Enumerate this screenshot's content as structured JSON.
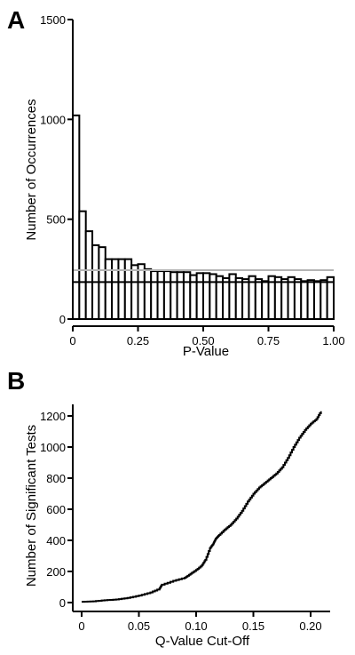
{
  "chart_data": [
    {
      "panel": "A",
      "type": "bar",
      "subtype": "histogram",
      "xlabel": "P-Value",
      "ylabel": "Number of Occurrences",
      "xlim": [
        0,
        1
      ],
      "ylim": [
        0,
        1500
      ],
      "xticks": [
        "0",
        "0.25",
        "0.50",
        "0.75",
        "1.00"
      ],
      "yticks": [
        "0",
        "500",
        "1000",
        "1500"
      ],
      "bin_width": 0.025,
      "bin_start": 0,
      "values": [
        1020,
        540,
        440,
        370,
        360,
        300,
        300,
        300,
        300,
        270,
        275,
        250,
        240,
        240,
        240,
        235,
        235,
        235,
        220,
        230,
        230,
        225,
        215,
        205,
        225,
        205,
        200,
        215,
        200,
        190,
        215,
        210,
        200,
        210,
        200,
        190,
        195,
        190,
        195,
        210
      ],
      "reference_lines": [
        {
          "name": "",
          "y": 245,
          "color": "#b4b4b4"
        },
        {
          "name": "",
          "y": 185,
          "color": "#000000"
        }
      ],
      "bar_fill": "#ffffff",
      "bar_stroke": "#000000",
      "grid": false,
      "legend": "none"
    },
    {
      "panel": "B",
      "type": "line",
      "subtype": "step",
      "xlabel": "Q-Value Cut-Off",
      "ylabel": "Number of Significant Tests",
      "xlim": [
        0,
        0.21
      ],
      "ylim": [
        0,
        1250
      ],
      "xticks": [
        "0",
        "0.05",
        "0.10",
        "0.15",
        "0.20"
      ],
      "yticks": [
        "0",
        "200",
        "400",
        "600",
        "800",
        "1000",
        "1200"
      ],
      "x": [
        0.0,
        0.01,
        0.02,
        0.03,
        0.04,
        0.05,
        0.06,
        0.068,
        0.07,
        0.08,
        0.09,
        0.095,
        0.1,
        0.105,
        0.108,
        0.112,
        0.115,
        0.117,
        0.12,
        0.125,
        0.13,
        0.135,
        0.14,
        0.145,
        0.15,
        0.155,
        0.16,
        0.165,
        0.17,
        0.175,
        0.18,
        0.185,
        0.19,
        0.195,
        0.2,
        0.205,
        0.209
      ],
      "y": [
        5,
        8,
        15,
        20,
        30,
        45,
        65,
        90,
        115,
        140,
        160,
        185,
        210,
        240,
        275,
        350,
        380,
        410,
        435,
        470,
        500,
        540,
        590,
        650,
        700,
        740,
        770,
        800,
        830,
        870,
        930,
        1000,
        1060,
        1110,
        1150,
        1180,
        1230
      ],
      "color": "#000000",
      "grid": false,
      "legend": "none"
    }
  ]
}
